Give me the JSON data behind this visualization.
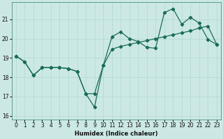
{
  "xlabel": "Humidex (Indice chaleur)",
  "background_color": "#cce8e5",
  "line_color": "#1a6b5a",
  "grid_color": "#b0d8d4",
  "xlim": [
    -0.5,
    23.5
  ],
  "ylim": [
    15.8,
    21.9
  ],
  "xticks": [
    0,
    1,
    2,
    3,
    4,
    5,
    6,
    7,
    8,
    9,
    10,
    11,
    12,
    13,
    14,
    15,
    16,
    17,
    18,
    19,
    20,
    21,
    22,
    23
  ],
  "yticks": [
    16,
    17,
    18,
    19,
    20,
    21
  ],
  "curve1_x": [
    0,
    1,
    2,
    3,
    4,
    5,
    6,
    7,
    8,
    9,
    10,
    11,
    12,
    13,
    14,
    15,
    16,
    17,
    18,
    19,
    20,
    21,
    22,
    23
  ],
  "curve1_y": [
    19.1,
    18.8,
    18.1,
    18.5,
    18.5,
    18.5,
    18.45,
    18.3,
    17.15,
    17.15,
    18.6,
    20.1,
    20.35,
    20.0,
    19.85,
    19.55,
    19.5,
    21.35,
    21.55,
    20.75,
    21.1,
    20.8,
    19.95,
    19.7
  ],
  "curve2_x": [
    0,
    1,
    2,
    3,
    4,
    5,
    6,
    7,
    8,
    9,
    10,
    11,
    12,
    13,
    14,
    15,
    16,
    17,
    18,
    19,
    20,
    21,
    22,
    23
  ],
  "curve2_y": [
    19.1,
    18.8,
    18.1,
    18.5,
    18.5,
    18.5,
    18.45,
    18.3,
    17.15,
    16.45,
    18.6,
    19.45,
    19.6,
    19.7,
    19.8,
    19.9,
    20.0,
    20.1,
    20.2,
    20.3,
    20.4,
    20.55,
    20.65,
    19.7
  ]
}
